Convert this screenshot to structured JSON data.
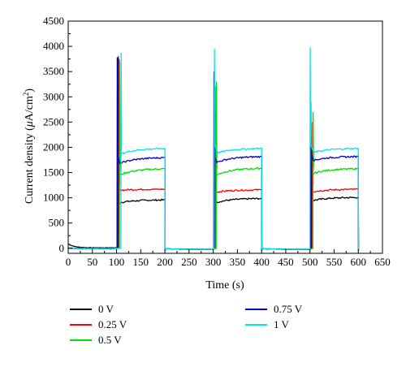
{
  "chart_data": {
    "type": "line",
    "xlabel": "Time (s)",
    "ylabel_prefix": "Current density (",
    "ylabel_mu": "μ",
    "ylabel_unit": "A/cm",
    "ylabel_sup": "2",
    "ylabel_suffix": ")",
    "xlim": [
      0,
      650
    ],
    "ylim": [
      -100,
      4500
    ],
    "xticks": [
      "0",
      "50",
      "100",
      "150",
      "200",
      "250",
      "300",
      "350",
      "400",
      "450",
      "500",
      "550",
      "600",
      "650"
    ],
    "yticks": [
      "0",
      "500",
      "1000",
      "1500",
      "2000",
      "2500",
      "3000",
      "3500",
      "4000",
      "4500"
    ],
    "xtick_values": [
      0,
      50,
      100,
      150,
      200,
      250,
      300,
      350,
      400,
      450,
      500,
      550,
      600,
      650
    ],
    "ytick_values": [
      0,
      500,
      1000,
      1500,
      2000,
      2500,
      3000,
      3500,
      4000,
      4500
    ],
    "legend_position": "bottom",
    "series": [
      {
        "name": "0 V",
        "color": "#000000",
        "on": [
          [
            103,
            900,
            960
          ],
          [
            303,
            900,
            990
          ],
          [
            503,
            940,
            1010
          ]
        ],
        "spikes": [
          [
            103,
            3800
          ],
          [
            303,
            2700
          ],
          [
            503,
            1950
          ]
        ]
      },
      {
        "name": "0.25 V",
        "color": "#ff0000",
        "on": [
          [
            105,
            1150,
            1170
          ],
          [
            305,
            1110,
            1160
          ],
          [
            505,
            1120,
            1170
          ]
        ],
        "spikes": [
          [
            105,
            3750
          ],
          [
            305,
            3200
          ],
          [
            505,
            2500
          ]
        ]
      },
      {
        "name": "0.5 V",
        "color": "#00e000",
        "on": [
          [
            106,
            1450,
            1580
          ],
          [
            306,
            1450,
            1590
          ],
          [
            506,
            1480,
            1580
          ]
        ],
        "spikes": [
          [
            106,
            3700
          ],
          [
            306,
            3300
          ],
          [
            506,
            2700
          ]
        ]
      },
      {
        "name": "0.75 V",
        "color": "#0000cc",
        "on": [
          [
            107,
            1680,
            1800
          ],
          [
            307,
            1700,
            1820
          ],
          [
            507,
            1740,
            1820
          ]
        ],
        "spikes": [
          [
            101,
            3780
          ],
          [
            301,
            3500
          ],
          [
            501,
            2900
          ]
        ]
      },
      {
        "name": "1 V",
        "color": "#00e5ee",
        "on": [
          [
            109,
            1870,
            1980
          ],
          [
            309,
            1890,
            1980
          ],
          [
            509,
            1900,
            1980
          ]
        ],
        "spikes": [
          [
            109,
            3870
          ],
          [
            302,
            3950
          ],
          [
            500,
            3980
          ]
        ]
      }
    ],
    "grid": false
  }
}
